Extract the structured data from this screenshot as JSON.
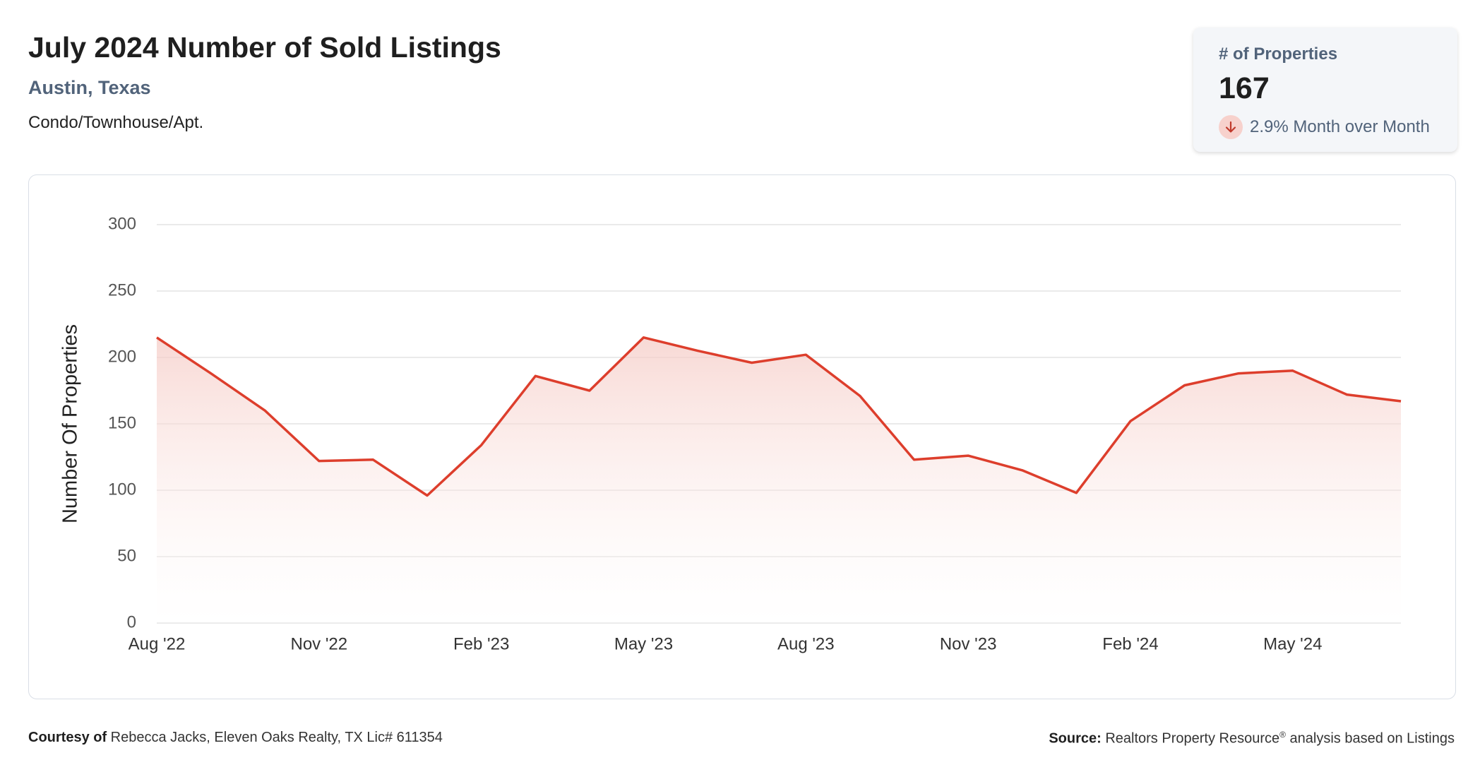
{
  "header": {
    "title": "July 2024 Number of Sold Listings",
    "location": "Austin, Texas",
    "property_type": "Condo/Townhouse/Apt."
  },
  "kpi": {
    "label": "# of Properties",
    "value": "167",
    "change_text": "2.9% Month over Month",
    "direction_icon": "arrow-down-icon"
  },
  "colors": {
    "line": "#dd3e2c",
    "fill_top": "#f5c9c3",
    "grid": "#e3e3e3",
    "label": "#51637a"
  },
  "chart_data": {
    "type": "area",
    "ylabel": "Number Of Properties",
    "xlabel": "",
    "ylim": [
      0,
      300
    ],
    "yticks": [
      0,
      50,
      100,
      150,
      200,
      250,
      300
    ],
    "x": [
      "Aug '22",
      "Sep '22",
      "Oct '22",
      "Nov '22",
      "Dec '22",
      "Jan '23",
      "Feb '23",
      "Mar '23",
      "Apr '23",
      "May '23",
      "Jun '23",
      "Jul '23",
      "Aug '23",
      "Sep '23",
      "Oct '23",
      "Nov '23",
      "Dec '23",
      "Jan '24",
      "Feb '24",
      "Mar '24",
      "Apr '24",
      "May '24",
      "Jun '24",
      "Jul '24"
    ],
    "xtick_labels": [
      "Aug '22",
      "Nov '22",
      "Feb '23",
      "May '23",
      "Aug '23",
      "Nov '23",
      "Feb '24",
      "May '24"
    ],
    "series": [
      {
        "values": [
          215,
          188,
          160,
          122,
          123,
          96,
          134,
          186,
          175,
          215,
          205,
          196,
          202,
          171,
          123,
          126,
          115,
          98,
          152,
          179,
          188,
          190,
          172,
          167
        ]
      }
    ],
    "grid": true,
    "legend": "none"
  },
  "footer": {
    "courtesy_label": "Courtesy of",
    "courtesy_text": " Rebecca Jacks, Eleven Oaks Realty, TX Lic# 611354",
    "source_label": "Source:",
    "source_text_1": " Realtors Property Resource",
    "source_sup": "®",
    "source_text_2": " analysis based on Listings"
  }
}
